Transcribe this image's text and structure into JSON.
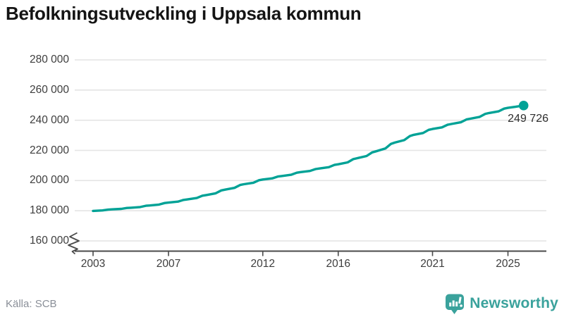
{
  "header": {
    "title": "Befolkningsutveckling i Uppsala kommun"
  },
  "footer": {
    "source": "Källa: SCB",
    "brand_name": "Newsworthy",
    "brand_icon": "newsworthy-speech-bubble-bar-chart-icon"
  },
  "colors": {
    "line": "#00a296",
    "grid": "#e4e4e4",
    "axis": "#4a4a4a",
    "tick_text": "#3d3d3d",
    "muted_text": "#8a8f98",
    "brand_teal": "#3aa29c",
    "title_text": "#141414"
  },
  "chart_data": {
    "type": "line",
    "title": "Befolkningsutveckling i Uppsala kommun",
    "xlabel": "",
    "ylabel": "",
    "grid": "horizontal",
    "y_axis_break": true,
    "ylim": [
      160000,
      280000
    ],
    "x_domain": [
      2003.0,
      2025.83
    ],
    "y_ticks": [
      {
        "value": 280000,
        "label": "280 000"
      },
      {
        "value": 260000,
        "label": "260 000"
      },
      {
        "value": 240000,
        "label": "240 000"
      },
      {
        "value": 220000,
        "label": "220 000"
      },
      {
        "value": 200000,
        "label": "200 000"
      },
      {
        "value": 180000,
        "label": "180 000"
      },
      {
        "value": 160000,
        "label": "160 000"
      }
    ],
    "x_ticks": [
      {
        "year": 2003,
        "label": "2003"
      },
      {
        "year": 2007,
        "label": "2007"
      },
      {
        "year": 2012,
        "label": "2012"
      },
      {
        "year": 2016,
        "label": "2016"
      },
      {
        "year": 2021,
        "label": "2021"
      },
      {
        "year": 2025,
        "label": "2025"
      }
    ],
    "points": [
      [
        2003.0,
        179900
      ],
      [
        2003.5,
        180220
      ],
      [
        2003.8,
        180750
      ],
      [
        2004.0,
        180900
      ],
      [
        2004.5,
        181250
      ],
      [
        2004.8,
        181840
      ],
      [
        2005.0,
        182000
      ],
      [
        2005.5,
        182480
      ],
      [
        2005.8,
        183280
      ],
      [
        2006.0,
        183500
      ],
      [
        2006.5,
        184110
      ],
      [
        2006.8,
        185120
      ],
      [
        2007.0,
        185400
      ],
      [
        2007.5,
        186070
      ],
      [
        2007.8,
        187190
      ],
      [
        2008.0,
        187500
      ],
      [
        2008.5,
        188430
      ],
      [
        2008.8,
        189970
      ],
      [
        2009.0,
        190400
      ],
      [
        2009.5,
        191550
      ],
      [
        2009.8,
        193460
      ],
      [
        2010.0,
        194000
      ],
      [
        2010.5,
        195150
      ],
      [
        2010.8,
        197060
      ],
      [
        2011.0,
        197600
      ],
      [
        2011.5,
        198590
      ],
      [
        2011.8,
        200240
      ],
      [
        2012.0,
        200700
      ],
      [
        2012.5,
        201440
      ],
      [
        2012.8,
        202660
      ],
      [
        2013.0,
        203000
      ],
      [
        2013.5,
        203830
      ],
      [
        2013.8,
        205210
      ],
      [
        2014.0,
        205600
      ],
      [
        2014.5,
        206370
      ],
      [
        2014.8,
        207640
      ],
      [
        2015.0,
        208000
      ],
      [
        2015.5,
        208900
      ],
      [
        2015.8,
        210380
      ],
      [
        2016.0,
        210800
      ],
      [
        2016.5,
        212080
      ],
      [
        2016.8,
        214200
      ],
      [
        2017.0,
        214800
      ],
      [
        2017.5,
        216270
      ],
      [
        2017.8,
        218710
      ],
      [
        2018.0,
        219400
      ],
      [
        2018.5,
        221260
      ],
      [
        2018.8,
        224330
      ],
      [
        2019.0,
        225200
      ],
      [
        2019.5,
        226830
      ],
      [
        2019.8,
        229540
      ],
      [
        2020.0,
        230300
      ],
      [
        2020.5,
        231550
      ],
      [
        2020.8,
        233620
      ],
      [
        2021.0,
        234200
      ],
      [
        2021.5,
        235260
      ],
      [
        2021.8,
        237010
      ],
      [
        2022.0,
        237500
      ],
      [
        2022.5,
        238620
      ],
      [
        2022.8,
        240480
      ],
      [
        2023.0,
        241000
      ],
      [
        2023.5,
        242220
      ],
      [
        2023.8,
        244230
      ],
      [
        2024.0,
        244800
      ],
      [
        2024.5,
        245890
      ],
      [
        2024.8,
        247690
      ],
      [
        2025.0,
        248200
      ],
      [
        2025.4,
        248900
      ],
      [
        2025.65,
        249400
      ],
      [
        2025.83,
        249726
      ]
    ],
    "end_point": {
      "x": 2025.83,
      "value": 249726
    },
    "end_label": "249 726"
  }
}
